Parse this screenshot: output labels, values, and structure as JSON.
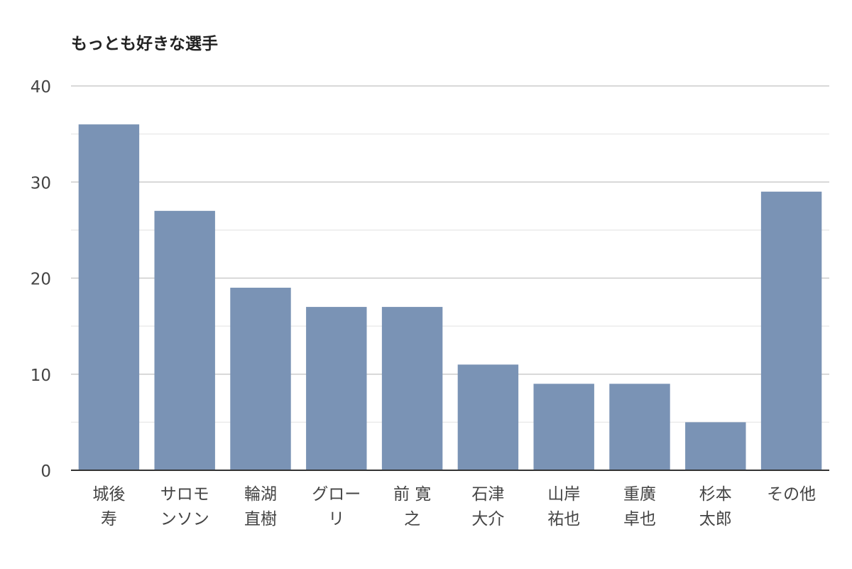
{
  "chart_data": {
    "type": "bar",
    "title": "もっとも好きな選手",
    "xlabel": "",
    "ylabel": "",
    "ylim": [
      0,
      40
    ],
    "yticks": [
      0,
      10,
      20,
      30,
      40
    ],
    "grid": true,
    "categories": [
      [
        "城後",
        "寿"
      ],
      [
        "サロモ",
        "ンソン"
      ],
      [
        "輪湖",
        "直樹"
      ],
      [
        "グロー",
        "リ"
      ],
      [
        "前 寛",
        "之"
      ],
      [
        "石津",
        "大介"
      ],
      [
        "山岸",
        "祐也"
      ],
      [
        "重廣",
        "卓也"
      ],
      [
        "杉本",
        "太郎"
      ],
      [
        "その他"
      ]
    ],
    "values": [
      36,
      27,
      19,
      17,
      17,
      11,
      9,
      9,
      5,
      29
    ],
    "bar_color": "#7a93b5",
    "axis_color": "#333333",
    "grid_color": "#cccccc",
    "minor_grid_color": "#ebebeb",
    "label_color": "#444444"
  }
}
